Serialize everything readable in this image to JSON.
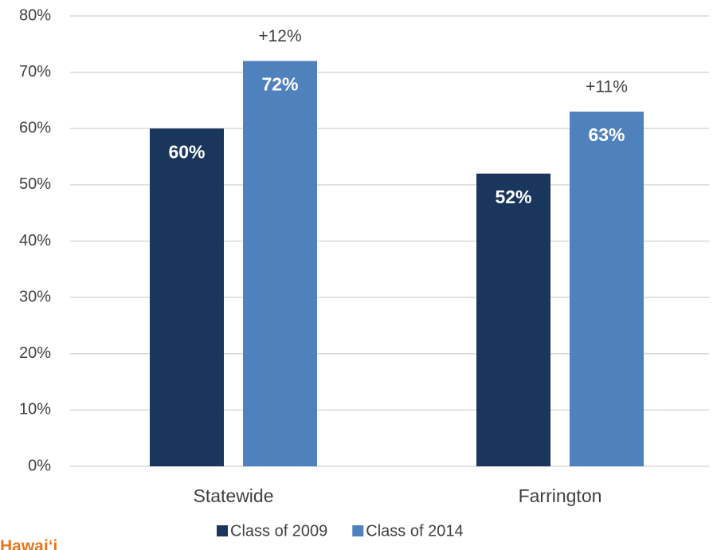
{
  "chart_data": {
    "type": "bar",
    "categories": [
      "Statewide",
      "Farrington"
    ],
    "series": [
      {
        "name": "Class of 2009",
        "color": "#1b365d",
        "values": [
          60,
          52
        ],
        "value_labels": [
          "60%",
          "52%"
        ]
      },
      {
        "name": "Class of 2014",
        "color": "#4f81bd",
        "values": [
          72,
          63
        ],
        "value_labels": [
          "72%",
          "63%"
        ]
      }
    ],
    "annotations": [
      "+12%",
      "+11%"
    ],
    "ylim": [
      0,
      80
    ],
    "yticks": [
      {
        "value": 0,
        "label": "0%"
      },
      {
        "value": 10,
        "label": "10%"
      },
      {
        "value": 20,
        "label": "20%"
      },
      {
        "value": 30,
        "label": "30%"
      },
      {
        "value": 40,
        "label": "40%"
      },
      {
        "value": 50,
        "label": "50%"
      },
      {
        "value": 60,
        "label": "60%"
      },
      {
        "value": 70,
        "label": "70%"
      },
      {
        "value": 80,
        "label": "80%"
      }
    ],
    "grid": true,
    "legend": "bottom",
    "footer": "Hawai‘i"
  }
}
